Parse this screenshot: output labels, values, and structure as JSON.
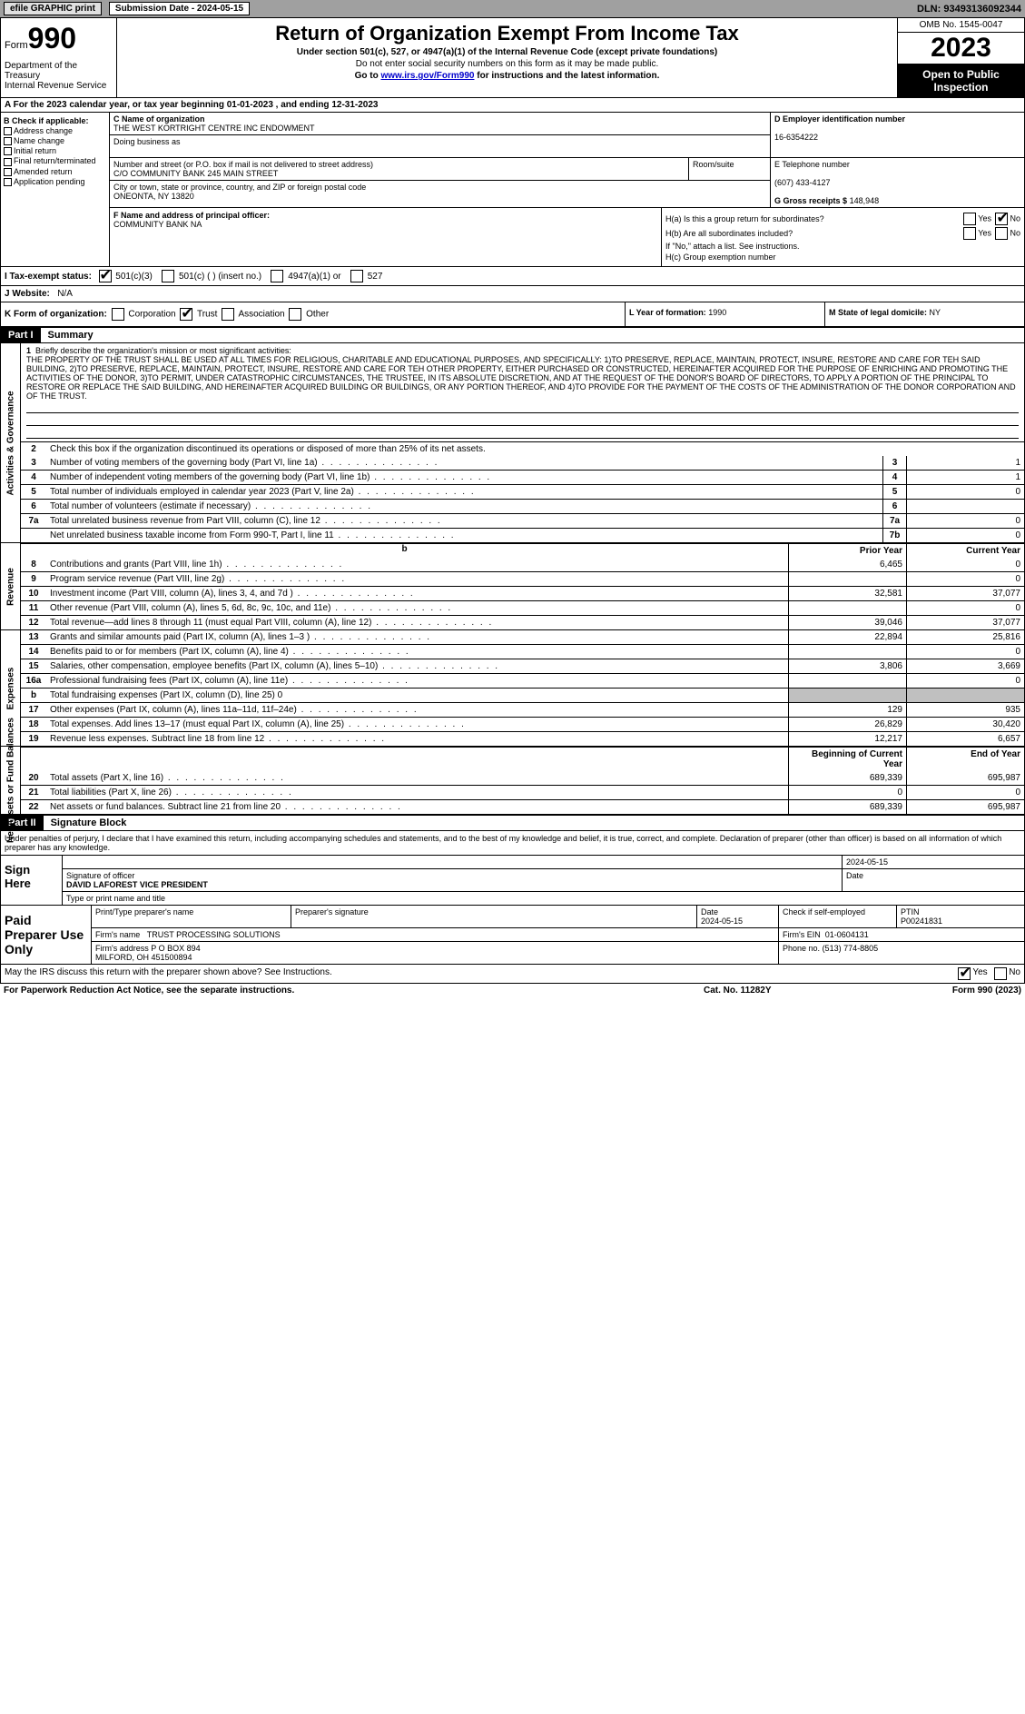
{
  "topbar": {
    "efile": "efile GRAPHIC print",
    "submission": "Submission Date - 2024-05-15",
    "dln": "DLN: 93493136092344"
  },
  "header": {
    "form_label": "Form",
    "form_num": "990",
    "title": "Return of Organization Exempt From Income Tax",
    "sub1": "Under section 501(c), 527, or 4947(a)(1) of the Internal Revenue Code (except private foundations)",
    "sub2": "Do not enter social security numbers on this form as it may be made public.",
    "sub3_pre": "Go to ",
    "sub3_link": "www.irs.gov/Form990",
    "sub3_post": " for instructions and the latest information.",
    "dept": "Department of the Treasury\nInternal Revenue Service",
    "omb": "OMB No. 1545-0047",
    "year": "2023",
    "open": "Open to Public Inspection"
  },
  "row_a": "A   For the 2023 calendar year, or tax year beginning 01-01-2023    , and ending 12-31-2023",
  "b": {
    "label": "B Check if applicable:",
    "items": [
      "Address change",
      "Name change",
      "Initial return",
      "Final return/terminated",
      "Amended return",
      "Application pending"
    ]
  },
  "c": {
    "label": "C Name of organization",
    "val": "THE WEST KORTRIGHT CENTRE INC ENDOWMENT",
    "dba_label": "Doing business as"
  },
  "addr": {
    "street_label": "Number and street (or P.O. box if mail is not delivered to street address)",
    "street_val": "C/O COMMUNITY BANK 245 MAIN STREET",
    "room_label": "Room/suite",
    "city_label": "City or town, state or province, country, and ZIP or foreign postal code",
    "city_val": "ONEONTA, NY  13820"
  },
  "d": {
    "label": "D Employer identification number",
    "val": "16-6354222"
  },
  "e": {
    "label": "E Telephone number",
    "val": "(607) 433-4127"
  },
  "g": {
    "label": "G Gross receipts $",
    "val": "148,948"
  },
  "f": {
    "label": "F  Name and address of principal officer:",
    "val": "COMMUNITY BANK NA"
  },
  "h": {
    "ha": "H(a)  Is this a group return for subordinates?",
    "hb": "H(b)  Are all subordinates included?",
    "hb_note": "If \"No,\" attach a list. See instructions.",
    "hc": "H(c)  Group exemption number"
  },
  "i": {
    "label": "I    Tax-exempt status:",
    "opts": [
      "501(c)(3)",
      "501(c) (  ) (insert no.)",
      "4947(a)(1) or",
      "527"
    ]
  },
  "j": {
    "label": "J   Website:",
    "val": "N/A"
  },
  "k": {
    "label": "K Form of organization:",
    "opts": [
      "Corporation",
      "Trust",
      "Association",
      "Other"
    ]
  },
  "l": {
    "label": "L Year of formation:",
    "val": "1990"
  },
  "m": {
    "label": "M State of legal domicile:",
    "val": "NY"
  },
  "part1": {
    "num": "Part I",
    "title": "Summary",
    "mission_label": "Briefly describe the organization's mission or most significant activities:",
    "mission": "THE PROPERTY OF THE TRUST SHALL BE USED AT ALL TIMES FOR RELIGIOUS, CHARITABLE AND EDUCATIONAL PURPOSES, AND SPECIFICALLY: 1)TO PRESERVE, REPLACE, MAINTAIN, PROTECT, INSURE, RESTORE AND CARE FOR TEH SAID BUILDING, 2)TO PRESERVE, REPLACE, MAINTAIN, PROTECT, INSURE, RESTORE AND CARE FOR TEH OTHER PROPERTY, EITHER PURCHASED OR CONSTRUCTED, HEREINAFTER ACQUIRED FOR THE PURPOSE OF ENRICHING AND PROMOTING THE ACTIVITIES OF THE DONOR, 3)TO PERMIT, UNDER CATASTROPHIC CIRCUMSTANCES, THE TRUSTEE, IN ITS ABSOLUTE DISCRETION, AND AT THE REQUEST OF THE DONOR'S BOARD OF DIRECTORS, TO APPLY A PORTION OF THE PRINCIPAL TO RESTORE OR REPLACE THE SAID BUILDING, AND HEREINAFTER ACQUIRED BUILDING OR BUILDINGS, OR ANY PORTION THEREOF, AND 4)TO PROVIDE FOR THE PAYMENT OF THE COSTS OF THE ADMINISTRATION OF THE DONOR CORPORATION AND OF THE TRUST.",
    "line2": "Check this box      if the organization discontinued its operations or disposed of more than 25% of its net assets.",
    "rows_ag": [
      {
        "n": "3",
        "t": "Number of voting members of the governing body (Part VI, line 1a)",
        "box": "3",
        "v": "1"
      },
      {
        "n": "4",
        "t": "Number of independent voting members of the governing body (Part VI, line 1b)",
        "box": "4",
        "v": "1"
      },
      {
        "n": "5",
        "t": "Total number of individuals employed in calendar year 2023 (Part V, line 2a)",
        "box": "5",
        "v": "0"
      },
      {
        "n": "6",
        "t": "Total number of volunteers (estimate if necessary)",
        "box": "6",
        "v": ""
      },
      {
        "n": "7a",
        "t": "Total unrelated business revenue from Part VIII, column (C), line 12",
        "box": "7a",
        "v": "0"
      },
      {
        "n": "",
        "t": "Net unrelated business taxable income from Form 990-T, Part I, line 11",
        "box": "7b",
        "v": "0"
      }
    ],
    "hdr_prior": "Prior Year",
    "hdr_curr": "Current Year",
    "rows_rev": [
      {
        "n": "8",
        "t": "Contributions and grants (Part VIII, line 1h)",
        "p": "6,465",
        "c": "0"
      },
      {
        "n": "9",
        "t": "Program service revenue (Part VIII, line 2g)",
        "p": "",
        "c": "0"
      },
      {
        "n": "10",
        "t": "Investment income (Part VIII, column (A), lines 3, 4, and 7d )",
        "p": "32,581",
        "c": "37,077"
      },
      {
        "n": "11",
        "t": "Other revenue (Part VIII, column (A), lines 5, 6d, 8c, 9c, 10c, and 11e)",
        "p": "",
        "c": "0"
      },
      {
        "n": "12",
        "t": "Total revenue—add lines 8 through 11 (must equal Part VIII, column (A), line 12)",
        "p": "39,046",
        "c": "37,077"
      }
    ],
    "rows_exp": [
      {
        "n": "13",
        "t": "Grants and similar amounts paid (Part IX, column (A), lines 1–3 )",
        "p": "22,894",
        "c": "25,816"
      },
      {
        "n": "14",
        "t": "Benefits paid to or for members (Part IX, column (A), line 4)",
        "p": "",
        "c": "0"
      },
      {
        "n": "15",
        "t": "Salaries, other compensation, employee benefits (Part IX, column (A), lines 5–10)",
        "p": "3,806",
        "c": "3,669"
      },
      {
        "n": "16a",
        "t": "Professional fundraising fees (Part IX, column (A), line 11e)",
        "p": "",
        "c": "0"
      },
      {
        "n": "b",
        "t": "Total fundraising expenses (Part IX, column (D), line 25) 0",
        "grey": true
      },
      {
        "n": "17",
        "t": "Other expenses (Part IX, column (A), lines 11a–11d, 11f–24e)",
        "p": "129",
        "c": "935"
      },
      {
        "n": "18",
        "t": "Total expenses. Add lines 13–17 (must equal Part IX, column (A), line 25)",
        "p": "26,829",
        "c": "30,420"
      },
      {
        "n": "19",
        "t": "Revenue less expenses. Subtract line 18 from line 12",
        "p": "12,217",
        "c": "6,657"
      }
    ],
    "hdr_beg": "Beginning of Current Year",
    "hdr_end": "End of Year",
    "rows_net": [
      {
        "n": "20",
        "t": "Total assets (Part X, line 16)",
        "p": "689,339",
        "c": "695,987"
      },
      {
        "n": "21",
        "t": "Total liabilities (Part X, line 26)",
        "p": "0",
        "c": "0"
      },
      {
        "n": "22",
        "t": "Net assets or fund balances. Subtract line 21 from line 20",
        "p": "689,339",
        "c": "695,987"
      }
    ],
    "side_ag": "Activities & Governance",
    "side_rev": "Revenue",
    "side_exp": "Expenses",
    "side_net": "Net Assets or Fund Balances"
  },
  "part2": {
    "num": "Part II",
    "title": "Signature Block"
  },
  "sig": {
    "intro": "Under penalties of perjury, I declare that I have examined this return, including accompanying schedules and statements, and to the best of my knowledge and belief, it is true, correct, and complete. Declaration of preparer (other than officer) is based on all information of which preparer has any knowledge.",
    "sign_here": "Sign Here",
    "sig_of_officer": "Signature of officer",
    "officer": "DAVID LAFOREST VICE PRESIDENT",
    "type_name": "Type or print name and title",
    "date_label": "Date",
    "date": "2024-05-15"
  },
  "prep": {
    "label": "Paid Preparer Use Only",
    "print_name_label": "Print/Type preparer's name",
    "prep_sig_label": "Preparer's signature",
    "date": "2024-05-15",
    "check_self": "Check        if self-employed",
    "ptin_label": "PTIN",
    "ptin": "P00241831",
    "firm_name_label": "Firm's name",
    "firm_name": "TRUST PROCESSING SOLUTIONS",
    "firm_ein_label": "Firm's EIN",
    "firm_ein": "01-0604131",
    "firm_addr_label": "Firm's address",
    "firm_addr": "P O BOX 894\nMILFORD, OH  451500894",
    "phone_label": "Phone no.",
    "phone": "(513) 774-8805"
  },
  "discuss": "May the IRS discuss this return with the preparer shown above? See Instructions.",
  "footer": {
    "left": "For Paperwork Reduction Act Notice, see the separate instructions.",
    "mid": "Cat. No. 11282Y",
    "right": "Form 990 (2023)"
  }
}
